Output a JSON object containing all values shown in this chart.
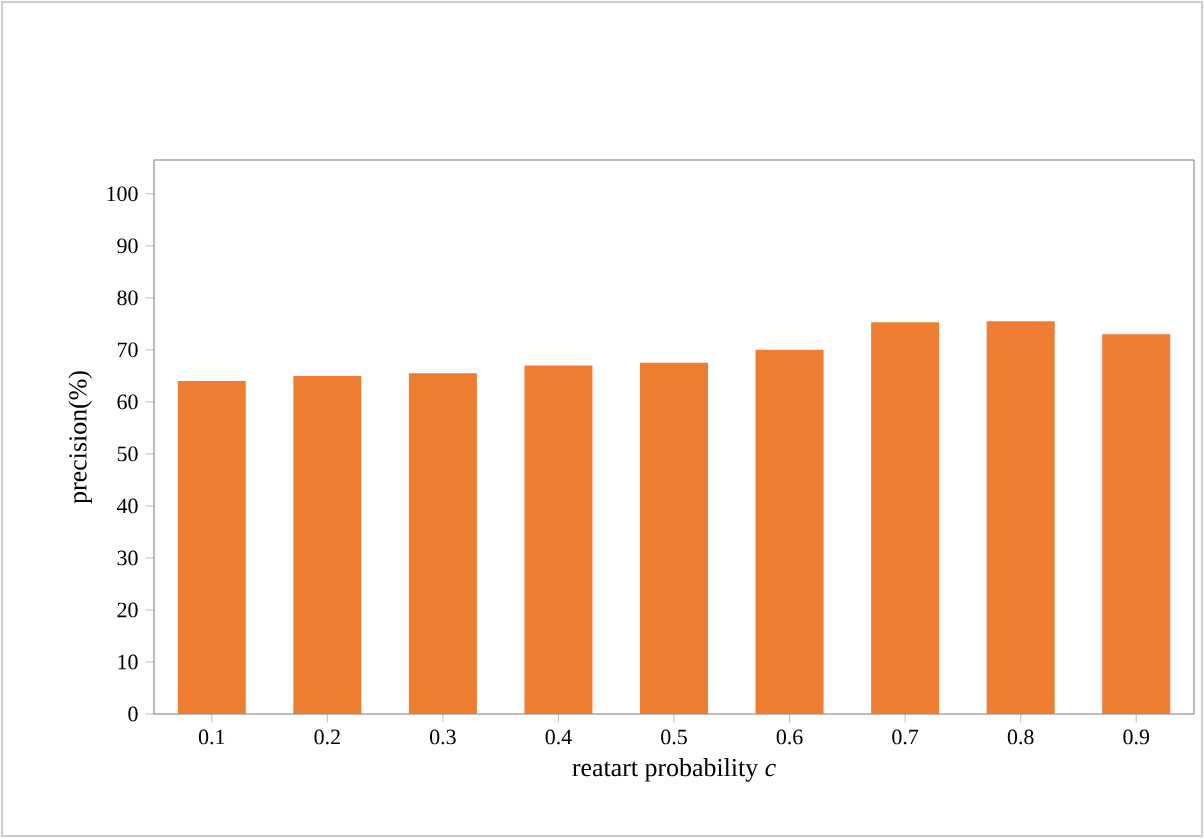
{
  "chart_data": {
    "type": "bar",
    "xlabel": "reatart probability *c*",
    "ylabel": "precision(%)",
    "categories": [
      "0.1",
      "0.2",
      "0.3",
      "0.4",
      "0.5",
      "0.6",
      "0.7",
      "0.8",
      "0.9"
    ],
    "values": [
      64,
      65,
      65.5,
      67,
      67.5,
      70,
      75.3,
      75.5,
      73
    ],
    "color": "#ed7d31",
    "ylim": [
      0,
      106.5
    ],
    "yticks": [
      0,
      10,
      20,
      30,
      40,
      50,
      60,
      70,
      80,
      90,
      100
    ]
  }
}
